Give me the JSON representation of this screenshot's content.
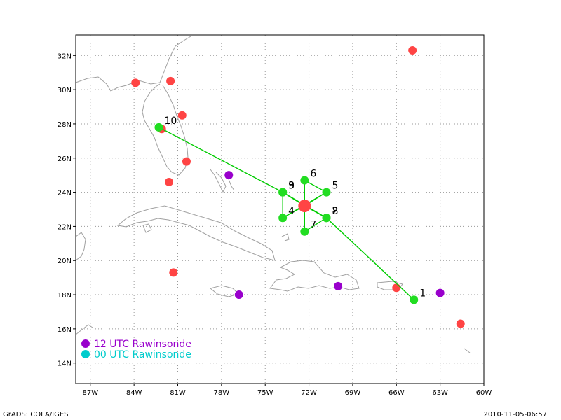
{
  "map": {
    "lon_range": [
      -88,
      -60
    ],
    "lat_range": [
      12.8,
      33.2
    ],
    "lon_ticks": [
      -87,
      -84,
      -81,
      -78,
      -75,
      -72,
      -69,
      -66,
      -63,
      -60
    ],
    "lon_tick_labels": [
      "87W",
      "84W",
      "81W",
      "78W",
      "75W",
      "72W",
      "69W",
      "66W",
      "63W",
      "60W"
    ],
    "lat_ticks": [
      14,
      16,
      18,
      20,
      22,
      24,
      26,
      28,
      30,
      32
    ],
    "lat_tick_labels": [
      "14N",
      "16N",
      "18N",
      "20N",
      "22N",
      "24N",
      "26N",
      "28N",
      "30N",
      "32N"
    ],
    "grid": true,
    "colors": {
      "coast": "#a0a0a0",
      "grid": "#999999",
      "track": "#00cc00",
      "dropsonde": "#22dd22",
      "red_station": "#ff4444",
      "rawinsonde_12": "#9900cc",
      "rawinsonde_00": "#00cccc",
      "center": "#ff4444"
    }
  },
  "flight_points": [
    {
      "label": "1",
      "lon": -64.8,
      "lat": 17.7
    },
    {
      "label": "2",
      "lon": -70.8,
      "lat": 22.5
    },
    {
      "label": "3",
      "lon": -73.8,
      "lat": 24.0
    },
    {
      "label": "4",
      "lon": -73.8,
      "lat": 22.5
    },
    {
      "label": "5",
      "lon": -70.8,
      "lat": 24.0
    },
    {
      "label": "6",
      "lon": -72.3,
      "lat": 24.7
    },
    {
      "label": "7",
      "lon": -72.3,
      "lat": 21.7
    },
    {
      "label": "8",
      "lon": -70.8,
      "lat": 22.5
    },
    {
      "label": "9",
      "lon": -73.8,
      "lat": 24.0
    },
    {
      "label": "10",
      "lon": -82.3,
      "lat": 27.8
    }
  ],
  "center": {
    "lon": -72.3,
    "lat": 23.2
  },
  "red_stations": [
    {
      "lon": -64.9,
      "lat": 32.3
    },
    {
      "lon": -83.9,
      "lat": 30.4
    },
    {
      "lon": -81.5,
      "lat": 30.5
    },
    {
      "lon": -80.7,
      "lat": 28.5
    },
    {
      "lon": -82.1,
      "lat": 27.7
    },
    {
      "lon": -80.4,
      "lat": 25.8
    },
    {
      "lon": -81.6,
      "lat": 24.6
    },
    {
      "lon": -81.3,
      "lat": 19.3
    },
    {
      "lon": -66.0,
      "lat": 18.4
    },
    {
      "lon": -61.6,
      "lat": 16.3
    }
  ],
  "rawinsonde_12": [
    {
      "lon": -77.5,
      "lat": 25.0
    },
    {
      "lon": -76.8,
      "lat": 18.0
    },
    {
      "lon": -70.0,
      "lat": 18.5
    },
    {
      "lon": -63.0,
      "lat": 18.1
    }
  ],
  "legend": {
    "items": [
      {
        "label": "12 UTC Rawinsonde",
        "color": "#9900cc"
      },
      {
        "label": "00 UTC Rawinsonde",
        "color": "#00cccc"
      }
    ]
  },
  "footer": {
    "left": "GrADS: COLA/IGES",
    "right": "2010-11-05-06:57"
  }
}
